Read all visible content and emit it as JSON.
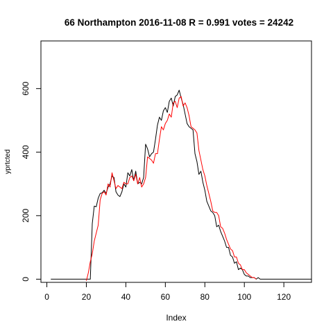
{
  "chart_data": {
    "type": "line",
    "title": "66 Northampton 2016-11-08 R = 0.991 votes = 24242",
    "xlabel": "Index",
    "ylabel": "yprtcted",
    "xlim": [
      -3,
      134
    ],
    "ylim": [
      -10,
      750
    ],
    "xticks": [
      0,
      20,
      40,
      60,
      80,
      100,
      120
    ],
    "yticks": [
      0,
      200,
      400,
      600
    ],
    "grid": false,
    "legend": "none",
    "series": [
      {
        "color": "#000000",
        "start_index": 2,
        "values": [
          0,
          0,
          0,
          0,
          0,
          0,
          0,
          0,
          0,
          0,
          0,
          0,
          0,
          0,
          0,
          0,
          0,
          0,
          0,
          0,
          0,
          175,
          230,
          228,
          255,
          270,
          272,
          280,
          270,
          290,
          300,
          325,
          320,
          275,
          265,
          260,
          275,
          300,
          290,
          335,
          325,
          345,
          310,
          340,
          300,
          305,
          300,
          320,
          425,
          410,
          385,
          395,
          400,
          440,
          485,
          510,
          500,
          530,
          540,
          525,
          560,
          570,
          545,
          575,
          580,
          595,
          570,
          550,
          520,
          490,
          480,
          475,
          470,
          395,
          370,
          330,
          340,
          305,
          280,
          245,
          230,
          215,
          210,
          200,
          165,
          170,
          150,
          135,
          120,
          100,
          100,
          75,
          70,
          50,
          55,
          30,
          35,
          30,
          15,
          10,
          10,
          5,
          5,
          5,
          0,
          5,
          0,
          0,
          0,
          0,
          0,
          0,
          0,
          0,
          0,
          0,
          0,
          0,
          0,
          0,
          0,
          0,
          0,
          0,
          0,
          0,
          0,
          0,
          0,
          0,
          0,
          0,
          0
        ]
      },
      {
        "color": "#ff0000",
        "start_index": 20,
        "values": [
          -5,
          20,
          55,
          80,
          120,
          145,
          170,
          250,
          270,
          275,
          265,
          300,
          290,
          335,
          310,
          285,
          295,
          290,
          285,
          305,
          300,
          300,
          320,
          325,
          310,
          330,
          300,
          320,
          290,
          300,
          320,
          385,
          380,
          375,
          365,
          395,
          395,
          440,
          480,
          470,
          490,
          500,
          520,
          510,
          555,
          560,
          540,
          570,
          575,
          545,
          555,
          540,
          515,
          480,
          475,
          470,
          460,
          405,
          375,
          345,
          325,
          295,
          270,
          245,
          215,
          210,
          210,
          200,
          165,
          160,
          145,
          125,
          110,
          95,
          90,
          70,
          70,
          50,
          45,
          30,
          30,
          20,
          15,
          10,
          5,
          5,
          0
        ]
      }
    ]
  }
}
